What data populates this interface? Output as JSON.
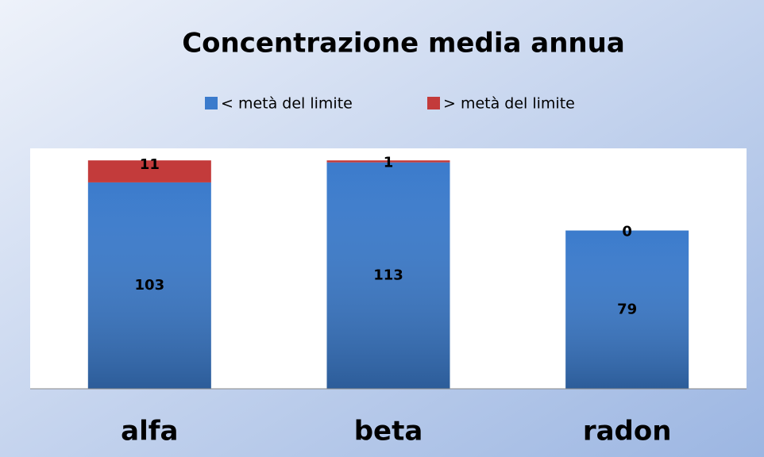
{
  "chart_data": {
    "type": "stacked-bar",
    "title": "Concentrazione media annua",
    "categories": [
      "alfa",
      "beta",
      "radon"
    ],
    "series": [
      {
        "name": "< metà del limite",
        "color": "#3b7bcc",
        "values": [
          103,
          113,
          79
        ]
      },
      {
        "name": "> metà del limite",
        "color": "#c33b3b",
        "values": [
          11,
          1,
          0
        ]
      }
    ],
    "ylim": [
      0,
      120
    ],
    "legend": "top"
  }
}
